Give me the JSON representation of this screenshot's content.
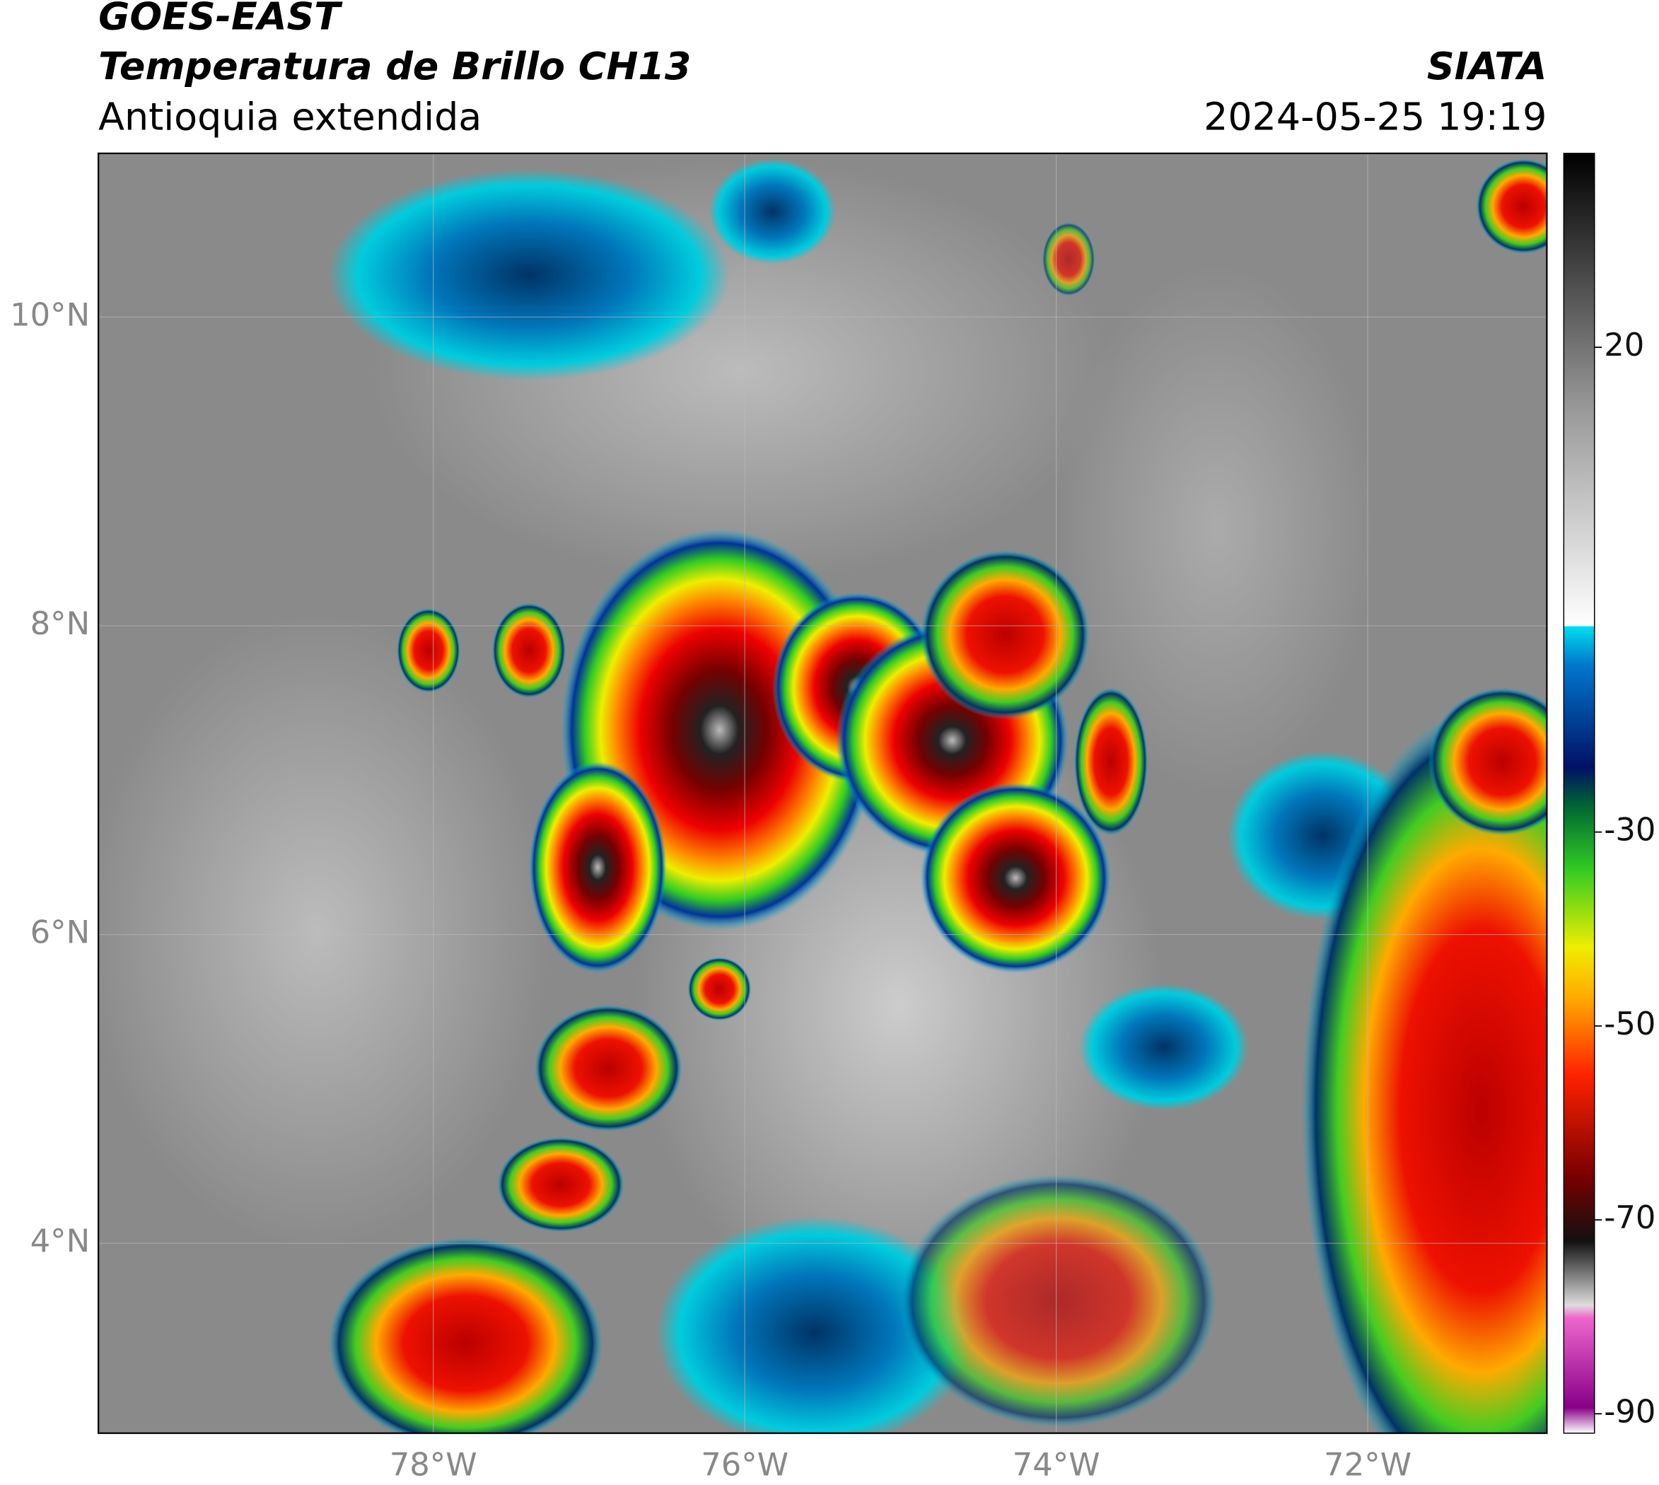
{
  "header": {
    "title": "GOES-EAST",
    "subtitle": "Temperatura de Brillo CH13",
    "region": "Antioquia extendida",
    "source": "SIATA",
    "timestamp": "2024-05-25 19:19"
  },
  "map": {
    "xlim": [
      -80.15,
      -70.85
    ],
    "ylim": [
      2.77,
      11.06
    ],
    "xticks": [
      {
        "value": -78,
        "label": "78°W"
      },
      {
        "value": -76,
        "label": "76°W"
      },
      {
        "value": -74,
        "label": "74°W"
      },
      {
        "value": -72,
        "label": "72°W"
      }
    ],
    "yticks": [
      {
        "value": 10,
        "label": "10°N"
      },
      {
        "value": 8,
        "label": "8°N"
      },
      {
        "value": 6,
        "label": "6°N"
      },
      {
        "value": 4,
        "label": "4°N"
      }
    ]
  },
  "colorbar": {
    "lim": [
      -92,
      40
    ],
    "ticks": [
      20,
      -30,
      -50,
      -70,
      -90
    ]
  }
}
